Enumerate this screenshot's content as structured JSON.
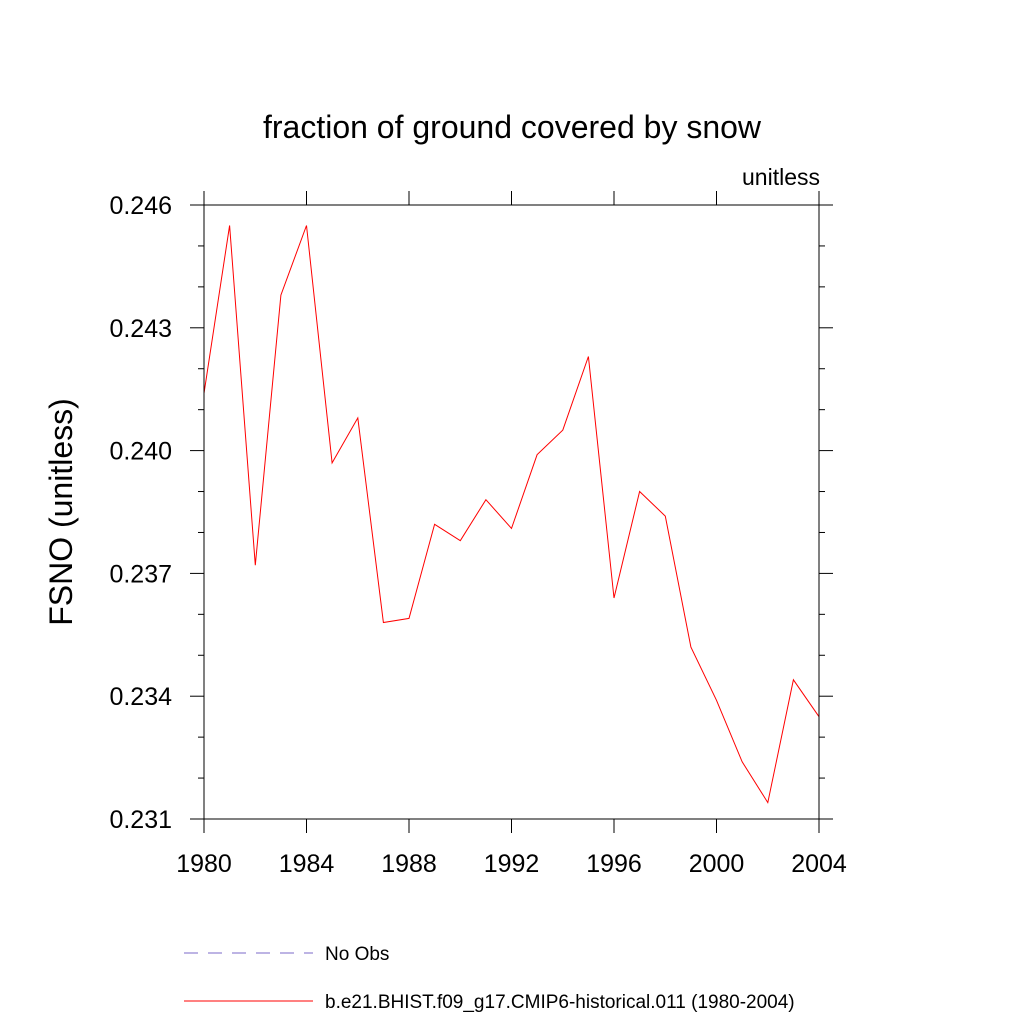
{
  "chart_data": {
    "type": "line",
    "title": "fraction of ground covered by snow",
    "units_label": "unitless",
    "ylabel": "FSNO  (unitless)",
    "xlabel": "",
    "xlim": [
      1980,
      2004
    ],
    "ylim": [
      0.231,
      0.246
    ],
    "x_ticks": [
      1980,
      1984,
      1988,
      1992,
      1996,
      2000,
      2004
    ],
    "x_tick_labels": [
      "1980",
      "1984",
      "1988",
      "1992",
      "1996",
      "2000",
      "2004"
    ],
    "y_ticks": [
      0.231,
      0.234,
      0.237,
      0.24,
      0.243,
      0.246
    ],
    "y_tick_labels": [
      "0.231",
      "0.234",
      "0.237",
      "0.240",
      "0.243",
      "0.246"
    ],
    "grid": false,
    "legend_position": "bottom",
    "series": [
      {
        "name": "No Obs",
        "color": "#7b68c8",
        "dash": "dashed",
        "x": [],
        "y": []
      },
      {
        "name": "b.e21.BHIST.f09_g17.CMIP6-historical.011 (1980-2004)",
        "color": "#ff0000",
        "dash": "solid",
        "x": [
          1980,
          1981,
          1982,
          1983,
          1984,
          1985,
          1986,
          1987,
          1988,
          1989,
          1990,
          1991,
          1992,
          1993,
          1994,
          1995,
          1996,
          1997,
          1998,
          1999,
          2000,
          2001,
          2002,
          2003,
          2004
        ],
        "y": [
          0.2414,
          0.2455,
          0.2372,
          0.2438,
          0.2455,
          0.2397,
          0.2408,
          0.2358,
          0.2359,
          0.2382,
          0.2378,
          0.2388,
          0.2381,
          0.2399,
          0.2405,
          0.2423,
          0.2364,
          0.239,
          0.2384,
          0.2352,
          0.2339,
          0.2324,
          0.2314,
          0.2344,
          0.2335
        ]
      }
    ]
  }
}
